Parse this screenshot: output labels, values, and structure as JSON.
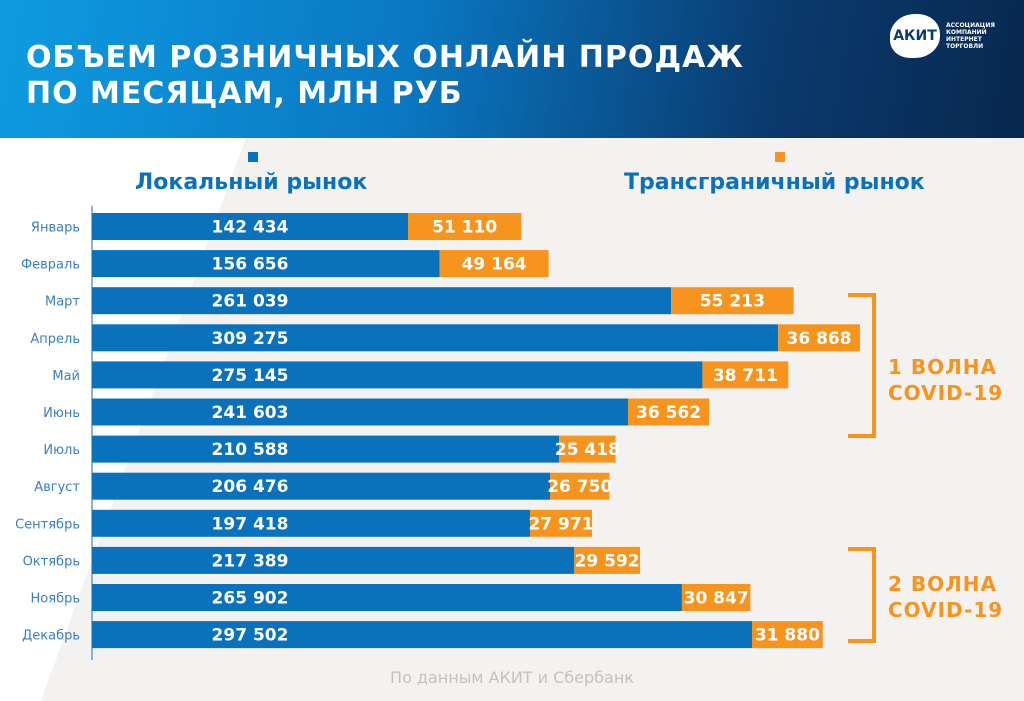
{
  "header": {
    "title_line1": "ОБЪЕМ РОЗНИЧНЫХ ОНЛАЙН ПРОДАЖ",
    "title_line2": "ПО  МЕСЯЦАМ, МЛН РУБ"
  },
  "logo": {
    "name": "АКИТ",
    "subtitle": "АССОЦИАЦИЯ КОМПАНИЙ ИНТЕРНЕТ ТОРГОВЛИ"
  },
  "annotations": {
    "wave1": [
      "1 ВОЛНА",
      "COVID-19"
    ],
    "wave2": [
      "2 ВОЛНА",
      "COVID-19"
    ]
  },
  "source": "По данным АКИТ и Сбербанк",
  "colors": {
    "local": "#0a72bd",
    "cross": "#f7941d"
  },
  "chart_data": {
    "type": "bar",
    "orientation": "horizontal-stacked",
    "categories": [
      "Январь",
      "Февраль",
      "Март",
      "Апрель",
      "Май",
      "Июнь",
      "Июль",
      "Август",
      "Сентябрь",
      "Октябрь",
      "Ноябрь",
      "Декабрь"
    ],
    "series": [
      {
        "name": "Локальный рынок",
        "values": [
          142434,
          156656,
          261039,
          309275,
          275145,
          241603,
          210588,
          206476,
          197418,
          217389,
          265902,
          297502
        ],
        "labels": [
          "142 434",
          "156 656",
          "261 039",
          "309 275",
          "275 145",
          "241 603",
          "210 588",
          "206 476",
          "197 418",
          "217 389",
          "265 902",
          "297 502"
        ]
      },
      {
        "name": "Трансграничный рынок",
        "values": [
          51110,
          49164,
          55213,
          36868,
          38711,
          36562,
          25418,
          26750,
          27971,
          29592,
          30847,
          31880
        ],
        "labels": [
          "51 110",
          "49 164",
          "55 213",
          "36 868",
          "38 711",
          "36 562",
          "25 418",
          "26 750",
          "27 971",
          "29 592",
          "30 847",
          "31 880"
        ]
      }
    ],
    "legend": "top"
  }
}
